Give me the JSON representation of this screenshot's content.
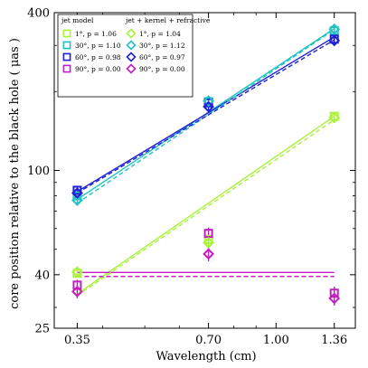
{
  "chart_data": {
    "type": "scatter",
    "xlabel": "Wavelength (cm)",
    "ylabel": "core position relative to the black hole ( μas )",
    "xscale": "log",
    "yscale": "log",
    "xlim": [
      0.31,
      1.52
    ],
    "ylim": [
      25,
      400
    ],
    "xticks": [
      0.35,
      0.7,
      1.0,
      1.36
    ],
    "xtick_labels": [
      "0.35",
      "0.70",
      "1.00",
      "1.36"
    ],
    "yticks": [
      25,
      40,
      100,
      400
    ],
    "ytick_labels": [
      "25",
      "40",
      "100",
      "400"
    ],
    "legend": {
      "placement": "top-left",
      "headers": [
        "jet model",
        "jet + kernel + refractive"
      ]
    },
    "series": [
      {
        "name": "1°, p = 1.06",
        "group": "jet model",
        "marker": "square",
        "fit_style": "solid",
        "color": "#aaf23c",
        "x": [
          0.35,
          0.7,
          1.36
        ],
        "y": [
          40.5,
          54.5,
          161
        ],
        "yerr": [
          1.5,
          2.5,
          4
        ],
        "fit": [
          33.8,
          161
        ]
      },
      {
        "name": "30°, p = 1.10",
        "group": "jet model",
        "marker": "square",
        "fit_style": "solid",
        "color": "#23c2c2",
        "x": [
          0.35,
          0.7,
          1.36
        ],
        "y": [
          80,
          183,
          341
        ],
        "yerr": [
          3,
          5,
          9
        ],
        "fit": [
          77.5,
          348
        ]
      },
      {
        "name": "60°, p = 0.98",
        "group": "jet model",
        "marker": "square",
        "fit_style": "solid",
        "color": "#1f1fd6",
        "x": [
          0.35,
          0.7,
          1.36
        ],
        "y": [
          84,
          181,
          317
        ],
        "yerr": [
          3,
          5,
          8
        ],
        "fit": [
          83,
          323
        ]
      },
      {
        "name": "90°, p = 0.00",
        "group": "jet model",
        "marker": "square",
        "fit_style": "solid",
        "color": "#c21fc2",
        "x": [
          0.35,
          0.7,
          1.36
        ],
        "y": [
          36.5,
          57.5,
          34
        ],
        "yerr": [
          1.8,
          3,
          2
        ],
        "fit": [
          40.8,
          40.8
        ]
      },
      {
        "name": "1°, p = 1.04",
        "group": "jet + kernel + refractive",
        "marker": "diamond",
        "fit_style": "dashed",
        "color": "#aaf23c",
        "x": [
          0.35,
          0.7,
          1.36
        ],
        "y": [
          41,
          53,
          159
        ],
        "yerr": [
          2,
          3,
          5
        ],
        "fit": [
          33.3,
          156
        ]
      },
      {
        "name": "30°, p = 1.12",
        "group": "jet + kernel + refractive",
        "marker": "diamond",
        "fit_style": "dashed",
        "color": "#23c2c2",
        "x": [
          0.35,
          0.7,
          1.36
        ],
        "y": [
          77,
          184,
          346
        ],
        "yerr": [
          3,
          6,
          10
        ],
        "fit": [
          75,
          345
        ]
      },
      {
        "name": "60°, p = 0.97",
        "group": "jet + kernel + refractive",
        "marker": "diamond",
        "fit_style": "dashed",
        "color": "#1f1fd6",
        "x": [
          0.35,
          0.7,
          1.36
        ],
        "y": [
          82,
          175,
          313
        ],
        "yerr": [
          3,
          6,
          9
        ],
        "fit": [
          82,
          315
        ]
      },
      {
        "name": "90°, p = 0.00",
        "group": "jet + kernel + refractive",
        "marker": "diamond",
        "fit_style": "dashed",
        "color": "#c21fc2",
        "x": [
          0.35,
          0.7,
          1.36
        ],
        "y": [
          34.5,
          48,
          32.5
        ],
        "yerr": [
          2,
          3,
          2
        ],
        "fit": [
          39.4,
          39.4
        ]
      }
    ]
  }
}
